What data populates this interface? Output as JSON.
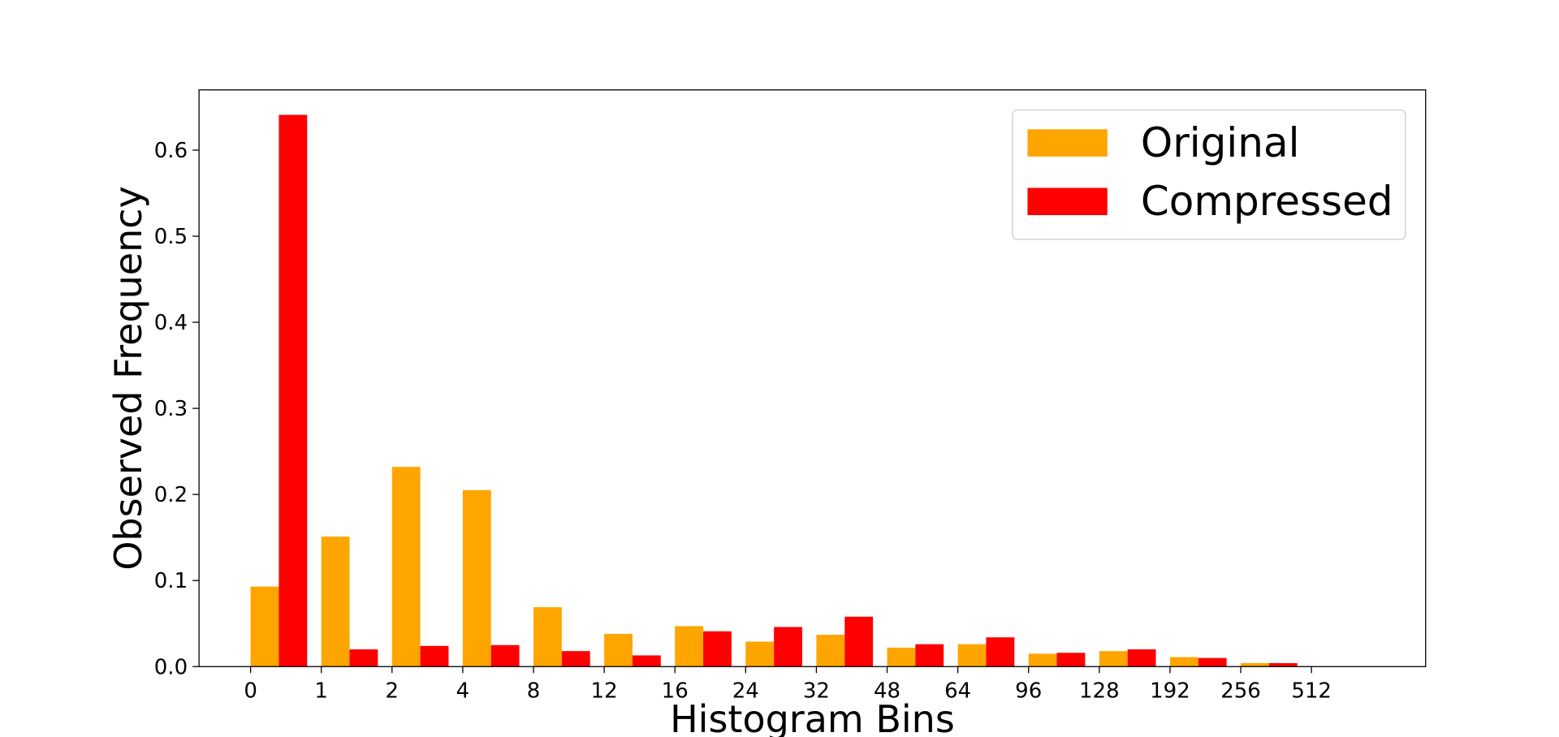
{
  "chart_data": {
    "type": "bar",
    "xlabel": "Histogram Bins",
    "ylabel": "Observed Frequency",
    "categories": [
      "0",
      "1",
      "2",
      "4",
      "8",
      "12",
      "16",
      "24",
      "32",
      "48",
      "64",
      "96",
      "128",
      "192",
      "256",
      "512"
    ],
    "series": [
      {
        "name": "Original",
        "color": "#ffa500",
        "values": [
          0.093,
          0.151,
          0.232,
          0.205,
          0.069,
          0.038,
          0.047,
          0.029,
          0.037,
          0.022,
          0.026,
          0.015,
          0.018,
          0.011,
          0.004,
          null
        ]
      },
      {
        "name": "Compressed",
        "color": "#ff0000",
        "values": [
          0.641,
          0.02,
          0.024,
          0.025,
          0.018,
          0.013,
          0.041,
          0.046,
          0.058,
          0.026,
          0.034,
          0.016,
          0.02,
          0.01,
          0.004,
          null
        ]
      }
    ],
    "ylim": [
      0,
      0.67
    ],
    "yticks": [
      0.0,
      0.1,
      0.2,
      0.3,
      0.4,
      0.5,
      0.6
    ],
    "ytick_labels": [
      "0.0",
      "0.1",
      "0.2",
      "0.3",
      "0.4",
      "0.5",
      "0.6"
    ],
    "grid": false,
    "legend_position": "top-right"
  }
}
